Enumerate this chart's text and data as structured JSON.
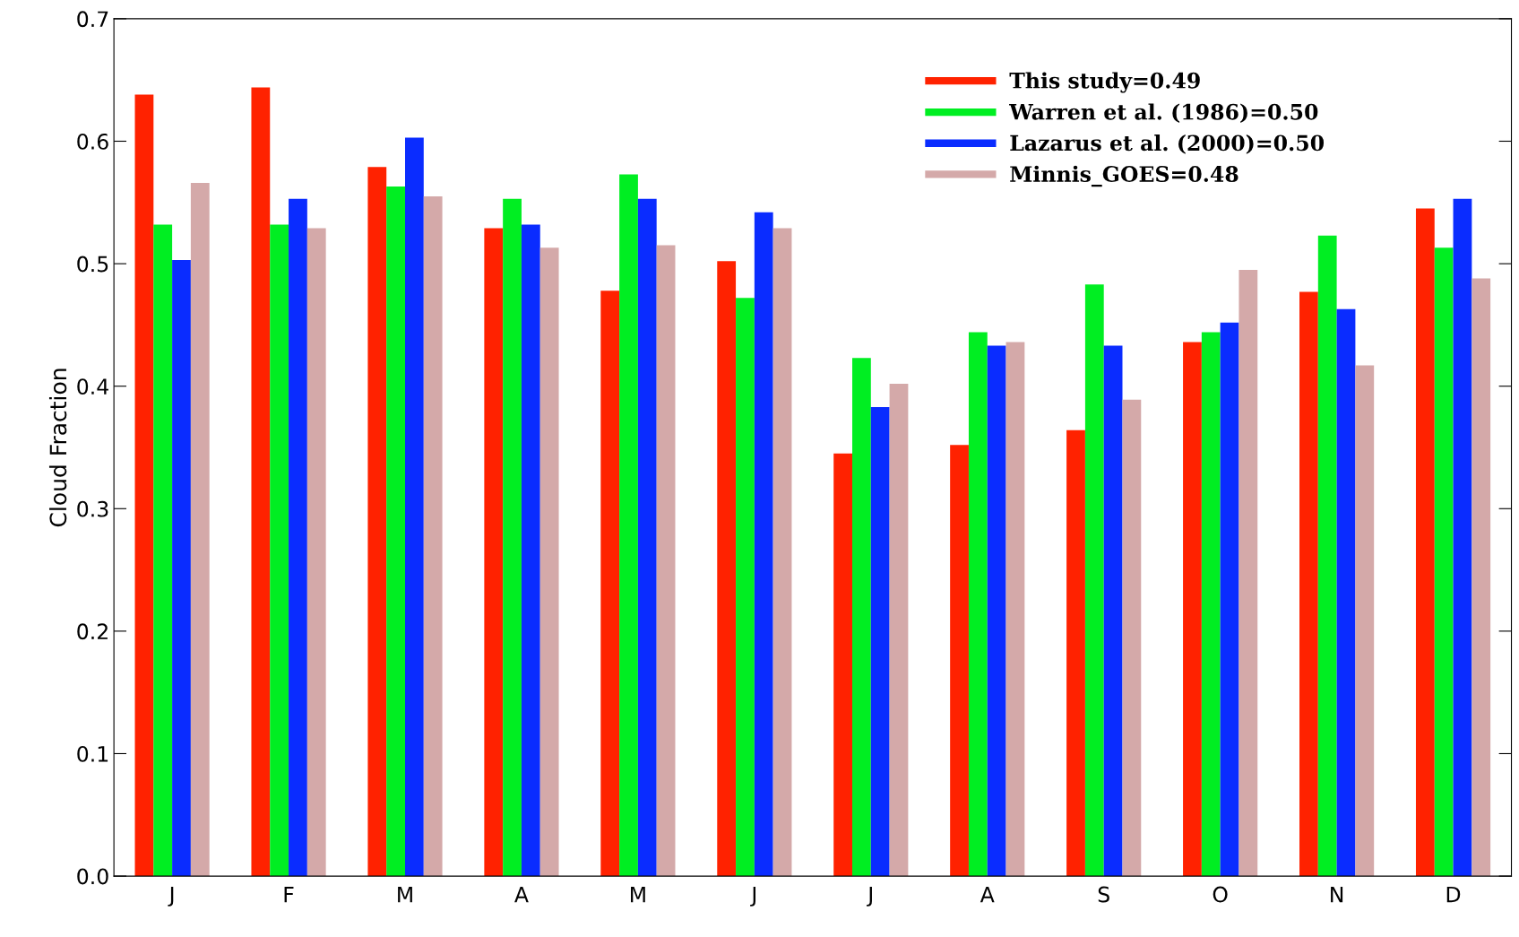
{
  "chart_data": {
    "type": "bar",
    "ylabel": "Cloud Fraction",
    "categories": [
      "J",
      "F",
      "M",
      "A",
      "M",
      "J",
      "J",
      "A",
      "S",
      "O",
      "N",
      "D"
    ],
    "series": [
      {
        "name": "This study=0.49",
        "color": "#ff2200",
        "values": [
          0.638,
          0.644,
          0.579,
          0.529,
          0.478,
          0.502,
          0.345,
          0.352,
          0.364,
          0.436,
          0.477,
          0.545
        ]
      },
      {
        "name": "Warren et al. (1986)=0.50",
        "color": "#00ee22",
        "values": [
          0.532,
          0.532,
          0.563,
          0.553,
          0.573,
          0.472,
          0.423,
          0.444,
          0.483,
          0.444,
          0.523,
          0.513
        ]
      },
      {
        "name": "Lazarus et al. (2000)=0.50",
        "color": "#0a2cff",
        "values": [
          0.503,
          0.553,
          0.603,
          0.532,
          0.553,
          0.542,
          0.383,
          0.433,
          0.433,
          0.452,
          0.463,
          0.553
        ]
      },
      {
        "name": "Minnis_GOES=0.48",
        "color": "#d4a9a9",
        "values": [
          0.566,
          0.529,
          0.555,
          0.513,
          0.515,
          0.529,
          0.402,
          0.436,
          0.389,
          0.495,
          0.417,
          0.488
        ]
      }
    ],
    "ylim": [
      0,
      0.7
    ],
    "yticks": [
      {
        "value": 0,
        "label": "0.0"
      },
      0.1,
      0.2,
      0.3,
      0.4,
      0.5,
      0.6,
      0.7
    ],
    "grid": false,
    "legend": "top right"
  }
}
